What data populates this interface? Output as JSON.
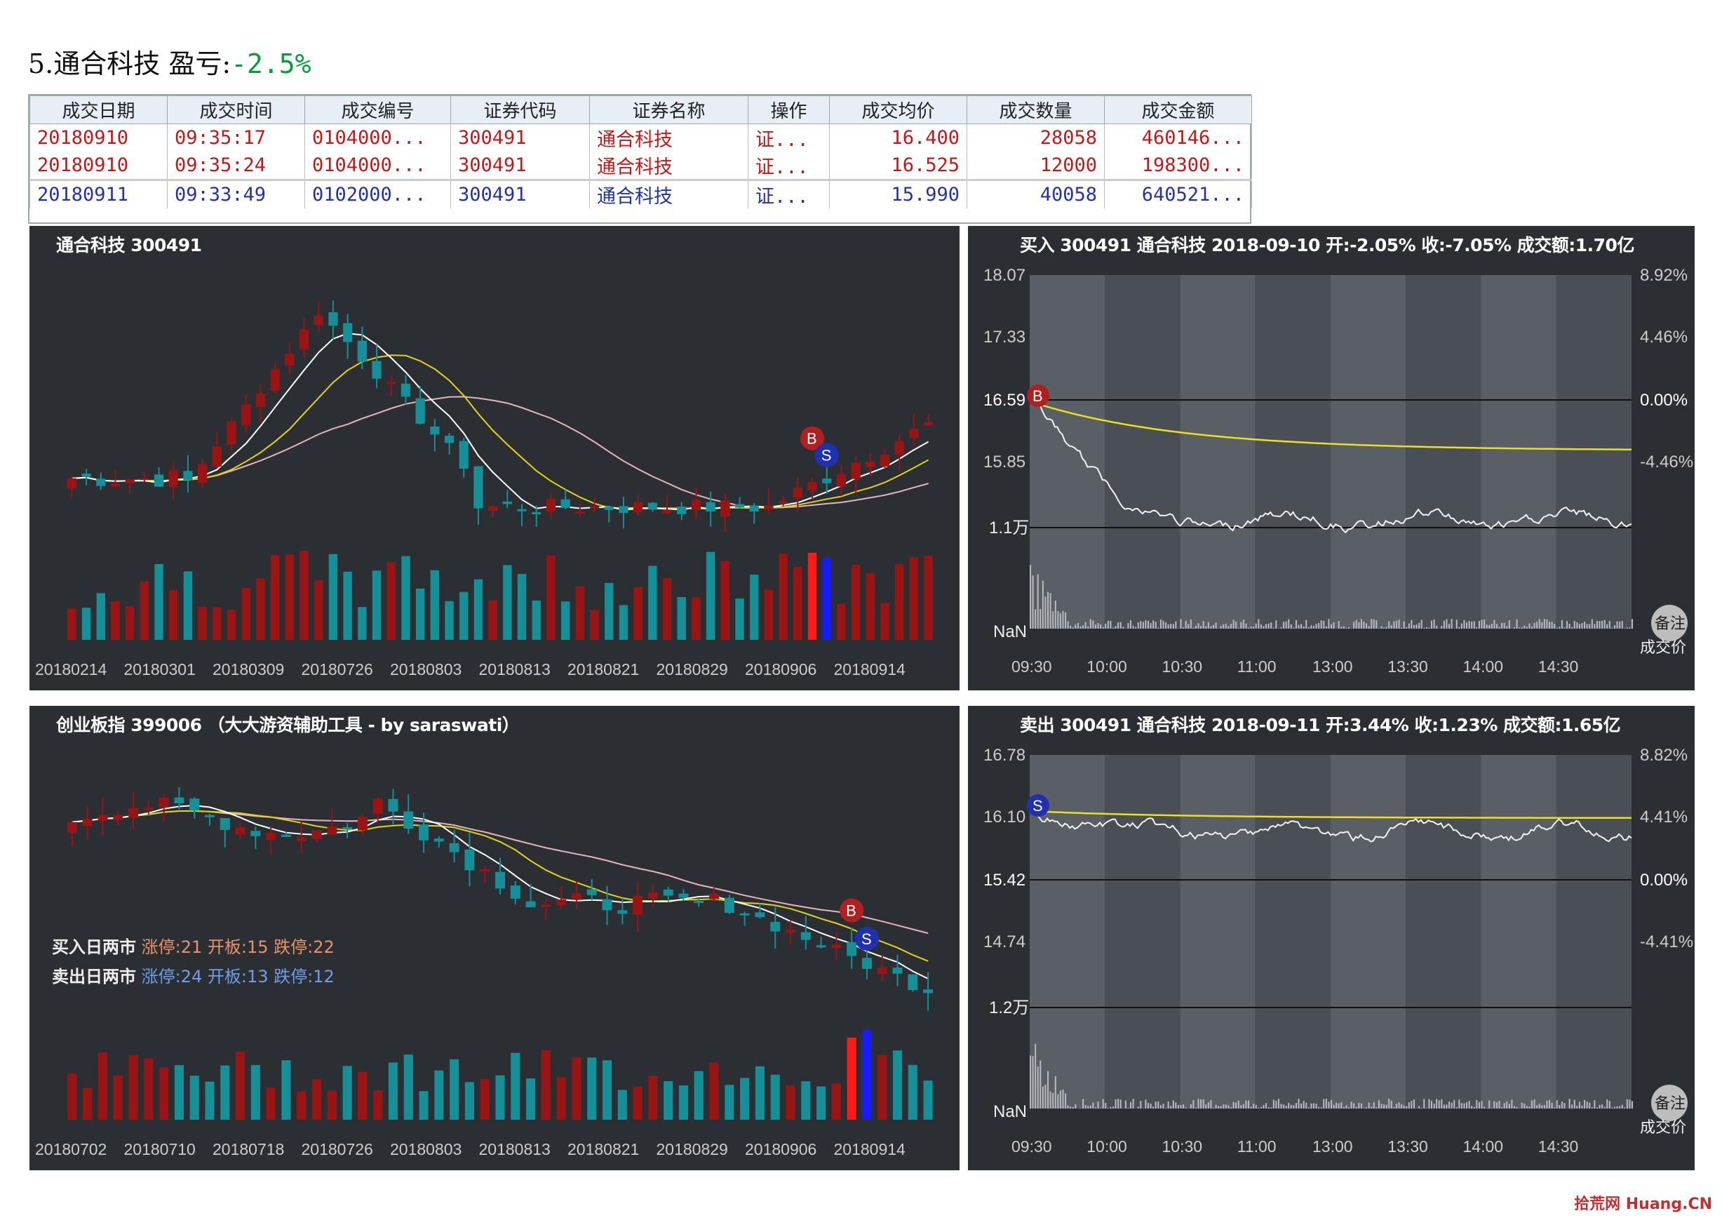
{
  "header": {
    "title": "5.通合科技 盈亏:",
    "pnl": "-2.5%"
  },
  "table": {
    "columns": [
      "成交日期",
      "成交时间",
      "成交编号",
      "证券代码",
      "证券名称",
      "操作",
      "成交均价",
      "成交数量",
      "成交金额"
    ],
    "rows": [
      {
        "kind": "red",
        "cells": [
          "20180910",
          "09:35:17",
          "0104000...",
          "300491",
          "通合科技",
          "证...",
          "16.400",
          "28058",
          "460146..."
        ]
      },
      {
        "kind": "red",
        "cells": [
          "20180910",
          "09:35:24",
          "0104000...",
          "300491",
          "通合科技",
          "证...",
          "16.525",
          "12000",
          "198300..."
        ]
      },
      {
        "kind": "blue",
        "cells": [
          "20180911",
          "09:33:49",
          "0102000...",
          "300491",
          "通合科技",
          "证...",
          "15.990",
          "40058",
          "640521..."
        ]
      }
    ]
  },
  "panels": {
    "stock_kline": {
      "title": "通合科技 300491",
      "dates": [
        "20180214",
        "20180301",
        "20180309",
        "20180726",
        "20180803",
        "20180813",
        "20180821",
        "20180829",
        "20180906",
        "20180914"
      ]
    },
    "index_kline": {
      "title": "创业板指 399006 （大大游资辅助工具 - by saraswati）",
      "dates": [
        "20180702",
        "20180710",
        "20180718",
        "20180726",
        "20180803",
        "20180813",
        "20180821",
        "20180829",
        "20180906",
        "20180914"
      ],
      "buy_label": "买入日两市",
      "buy_stats": "涨停:21 开板:15 跌停:22",
      "sell_label": "卖出日两市",
      "sell_stats": "涨停:24 开板:13 跌停:12"
    },
    "buy_intraday": {
      "title": "买入 300491 通合科技 2018-09-10 开:-2.05% 收:-7.05% 成交额:1.70亿",
      "left_ticks": [
        "18.07",
        "17.33",
        "16.59",
        "15.85"
      ],
      "right_ticks": [
        "8.92%",
        "4.46%",
        "0.00%",
        "-4.46%"
      ],
      "vol_max": "1.1万",
      "vol_min": "NaN"
    },
    "sell_intraday": {
      "title": "卖出 300491 通合科技 2018-09-11 开:3.44% 收:1.23% 成交额:1.65亿",
      "left_ticks": [
        "16.78",
        "16.10",
        "15.42",
        "14.74"
      ],
      "right_ticks": [
        "8.82%",
        "4.41%",
        "0.00%",
        "-4.41%"
      ],
      "vol_max": "1.2万",
      "vol_min": "NaN"
    },
    "time_labels": [
      "09:30",
      "10:00",
      "10:30",
      "11:00",
      "13:00",
      "13:30",
      "14:00",
      "14:30"
    ],
    "note_label": "备注",
    "price_label": "成交价",
    "buy_marker": "B",
    "sell_marker": "S"
  },
  "watermark": "拾荒网 Huang.CN",
  "colors": {
    "up": "#9b1414",
    "down": "#159098",
    "ma5": "#ffffff",
    "ma10": "#e2d31a",
    "ma20": "#e6b3bd",
    "buy_bar": "#ff1a1a",
    "sell_bar": "#1a1aff",
    "panel": "#2b2f34"
  }
}
